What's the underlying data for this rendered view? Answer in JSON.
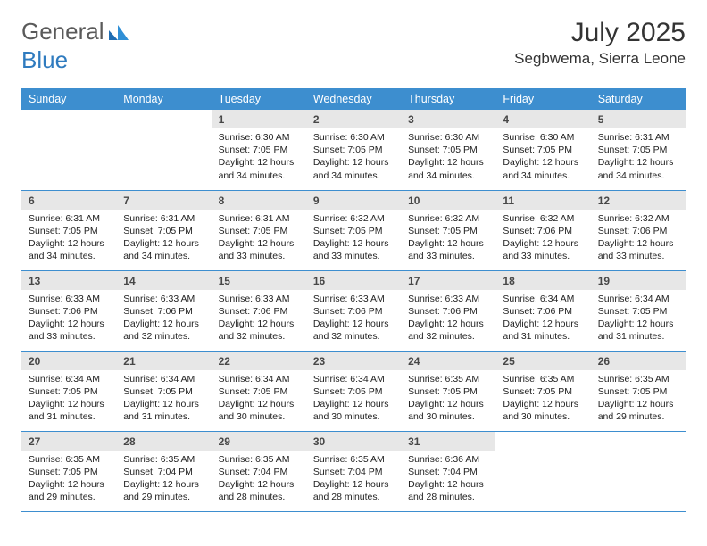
{
  "brand": {
    "part1": "General",
    "part2": "Blue"
  },
  "title": "July 2025",
  "location": "Segbwema, Sierra Leone",
  "colors": {
    "header_bg": "#3d8ecf",
    "header_text": "#ffffff",
    "daynum_bg": "#e7e7e7",
    "border": "#3d8ecf",
    "logo_gray": "#5a5a5a",
    "logo_blue": "#2f7bbf"
  },
  "weekdays": [
    "Sunday",
    "Monday",
    "Tuesday",
    "Wednesday",
    "Thursday",
    "Friday",
    "Saturday"
  ],
  "weeks": [
    [
      null,
      null,
      {
        "n": "1",
        "sr": "6:30 AM",
        "ss": "7:05 PM",
        "dl": "12 hours and 34 minutes."
      },
      {
        "n": "2",
        "sr": "6:30 AM",
        "ss": "7:05 PM",
        "dl": "12 hours and 34 minutes."
      },
      {
        "n": "3",
        "sr": "6:30 AM",
        "ss": "7:05 PM",
        "dl": "12 hours and 34 minutes."
      },
      {
        "n": "4",
        "sr": "6:30 AM",
        "ss": "7:05 PM",
        "dl": "12 hours and 34 minutes."
      },
      {
        "n": "5",
        "sr": "6:31 AM",
        "ss": "7:05 PM",
        "dl": "12 hours and 34 minutes."
      }
    ],
    [
      {
        "n": "6",
        "sr": "6:31 AM",
        "ss": "7:05 PM",
        "dl": "12 hours and 34 minutes."
      },
      {
        "n": "7",
        "sr": "6:31 AM",
        "ss": "7:05 PM",
        "dl": "12 hours and 34 minutes."
      },
      {
        "n": "8",
        "sr": "6:31 AM",
        "ss": "7:05 PM",
        "dl": "12 hours and 33 minutes."
      },
      {
        "n": "9",
        "sr": "6:32 AM",
        "ss": "7:05 PM",
        "dl": "12 hours and 33 minutes."
      },
      {
        "n": "10",
        "sr": "6:32 AM",
        "ss": "7:05 PM",
        "dl": "12 hours and 33 minutes."
      },
      {
        "n": "11",
        "sr": "6:32 AM",
        "ss": "7:06 PM",
        "dl": "12 hours and 33 minutes."
      },
      {
        "n": "12",
        "sr": "6:32 AM",
        "ss": "7:06 PM",
        "dl": "12 hours and 33 minutes."
      }
    ],
    [
      {
        "n": "13",
        "sr": "6:33 AM",
        "ss": "7:06 PM",
        "dl": "12 hours and 33 minutes."
      },
      {
        "n": "14",
        "sr": "6:33 AM",
        "ss": "7:06 PM",
        "dl": "12 hours and 32 minutes."
      },
      {
        "n": "15",
        "sr": "6:33 AM",
        "ss": "7:06 PM",
        "dl": "12 hours and 32 minutes."
      },
      {
        "n": "16",
        "sr": "6:33 AM",
        "ss": "7:06 PM",
        "dl": "12 hours and 32 minutes."
      },
      {
        "n": "17",
        "sr": "6:33 AM",
        "ss": "7:06 PM",
        "dl": "12 hours and 32 minutes."
      },
      {
        "n": "18",
        "sr": "6:34 AM",
        "ss": "7:06 PM",
        "dl": "12 hours and 31 minutes."
      },
      {
        "n": "19",
        "sr": "6:34 AM",
        "ss": "7:05 PM",
        "dl": "12 hours and 31 minutes."
      }
    ],
    [
      {
        "n": "20",
        "sr": "6:34 AM",
        "ss": "7:05 PM",
        "dl": "12 hours and 31 minutes."
      },
      {
        "n": "21",
        "sr": "6:34 AM",
        "ss": "7:05 PM",
        "dl": "12 hours and 31 minutes."
      },
      {
        "n": "22",
        "sr": "6:34 AM",
        "ss": "7:05 PM",
        "dl": "12 hours and 30 minutes."
      },
      {
        "n": "23",
        "sr": "6:34 AM",
        "ss": "7:05 PM",
        "dl": "12 hours and 30 minutes."
      },
      {
        "n": "24",
        "sr": "6:35 AM",
        "ss": "7:05 PM",
        "dl": "12 hours and 30 minutes."
      },
      {
        "n": "25",
        "sr": "6:35 AM",
        "ss": "7:05 PM",
        "dl": "12 hours and 30 minutes."
      },
      {
        "n": "26",
        "sr": "6:35 AM",
        "ss": "7:05 PM",
        "dl": "12 hours and 29 minutes."
      }
    ],
    [
      {
        "n": "27",
        "sr": "6:35 AM",
        "ss": "7:05 PM",
        "dl": "12 hours and 29 minutes."
      },
      {
        "n": "28",
        "sr": "6:35 AM",
        "ss": "7:04 PM",
        "dl": "12 hours and 29 minutes."
      },
      {
        "n": "29",
        "sr": "6:35 AM",
        "ss": "7:04 PM",
        "dl": "12 hours and 28 minutes."
      },
      {
        "n": "30",
        "sr": "6:35 AM",
        "ss": "7:04 PM",
        "dl": "12 hours and 28 minutes."
      },
      {
        "n": "31",
        "sr": "6:36 AM",
        "ss": "7:04 PM",
        "dl": "12 hours and 28 minutes."
      },
      null,
      null
    ]
  ],
  "labels": {
    "sunrise": "Sunrise: ",
    "sunset": "Sunset: ",
    "daylight": "Daylight: "
  }
}
